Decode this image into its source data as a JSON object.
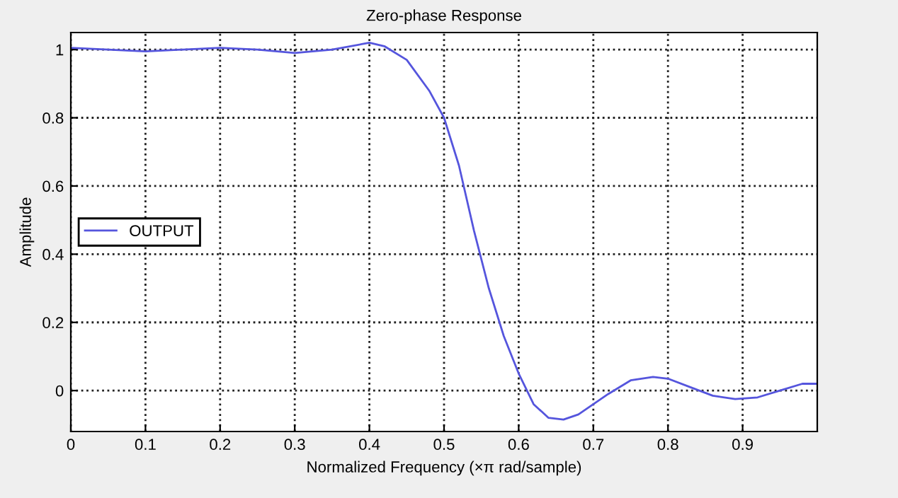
{
  "chart_data": {
    "type": "line",
    "title": "Zero-phase Response",
    "xlabel": "Normalized Frequency (×π rad/sample)",
    "ylabel": "Amplitude",
    "x": [
      0,
      0.05,
      0.1,
      0.15,
      0.2,
      0.25,
      0.3,
      0.35,
      0.4,
      0.42,
      0.45,
      0.48,
      0.5,
      0.52,
      0.54,
      0.56,
      0.58,
      0.6,
      0.62,
      0.64,
      0.66,
      0.68,
      0.7,
      0.72,
      0.75,
      0.78,
      0.8,
      0.83,
      0.86,
      0.89,
      0.92,
      0.95,
      0.98,
      1.0
    ],
    "series": [
      {
        "name": "OUTPUT",
        "color": "#5555dd",
        "values": [
          1.005,
          1.0,
          0.995,
          1.0,
          1.005,
          1.0,
          0.99,
          1.0,
          1.02,
          1.01,
          0.97,
          0.88,
          0.8,
          0.66,
          0.47,
          0.3,
          0.16,
          0.05,
          -0.04,
          -0.08,
          -0.085,
          -0.07,
          -0.04,
          -0.01,
          0.03,
          0.04,
          0.035,
          0.01,
          -0.015,
          -0.025,
          -0.02,
          0.0,
          0.02,
          0.02
        ]
      }
    ],
    "xlim": [
      0,
      1
    ],
    "ylim": [
      -0.12,
      1.05
    ],
    "xticks": [
      0,
      0.1,
      0.2,
      0.3,
      0.4,
      0.5,
      0.6,
      0.7,
      0.8,
      0.9
    ],
    "yticks": [
      0,
      0.2,
      0.4,
      0.6,
      0.8,
      1
    ],
    "grid": true,
    "line_style": "solid",
    "legend": "center left"
  }
}
